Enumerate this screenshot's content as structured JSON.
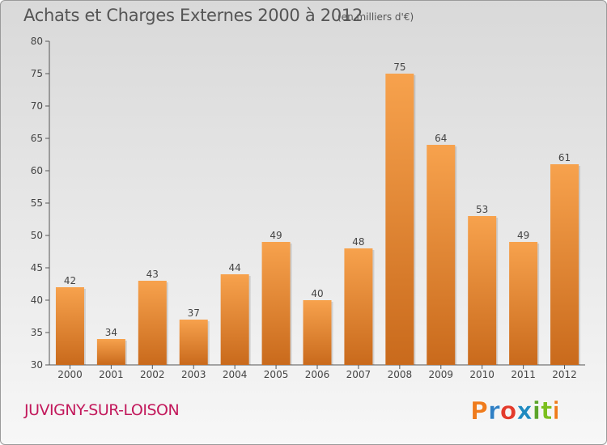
{
  "header": {
    "title": "Achats et Charges Externes 2000 à 2012",
    "subtitle": "(en milliers d'€)"
  },
  "footer": {
    "commune": "JUVIGNY-SUR-LOISON",
    "logo_text": "Proxiti"
  },
  "colors": {
    "bar_top": "#f7a24d",
    "bar_bottom": "#c96a1c",
    "axis": "#555555",
    "grid": "#cfcfcf",
    "commune_text": "#c2185b",
    "logo_letters": [
      "#ef7b1c",
      "#2f7fc4",
      "#e33b2c",
      "#1f8ac0",
      "#5ba32a",
      "#7bbf1e",
      "#ef7b1c"
    ]
  },
  "chart_data": {
    "type": "bar",
    "categories": [
      "2000",
      "2001",
      "2002",
      "2003",
      "2004",
      "2005",
      "2006",
      "2007",
      "2008",
      "2009",
      "2010",
      "2011",
      "2012"
    ],
    "values": [
      42,
      34,
      43,
      37,
      44,
      49,
      40,
      48,
      75,
      64,
      53,
      49,
      61
    ],
    "ylim": [
      30,
      80
    ],
    "yticks": [
      30,
      35,
      40,
      45,
      50,
      55,
      60,
      65,
      70,
      75,
      80
    ],
    "grid": false,
    "data_labels": true
  }
}
